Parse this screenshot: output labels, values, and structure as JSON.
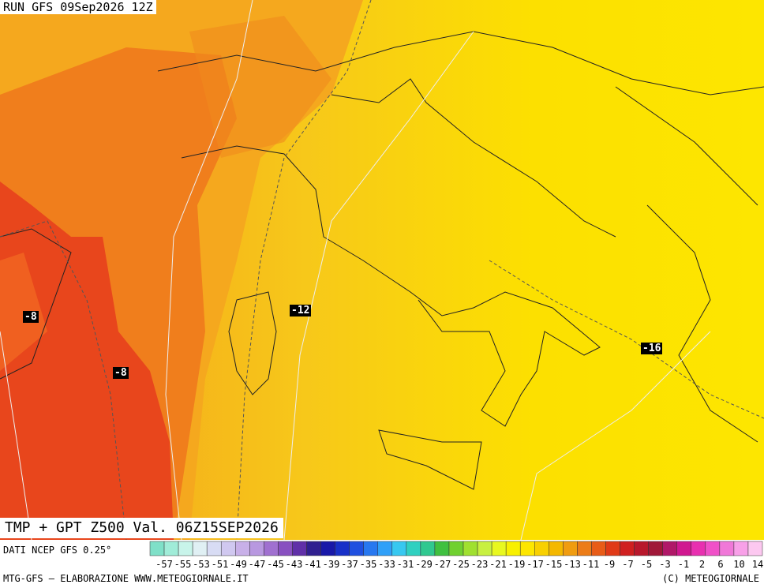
{
  "header": {
    "run": "RUN GFS 09Sep2026 12Z"
  },
  "map": {
    "contour_labels": [
      "-8",
      "-8",
      "-12",
      "-16"
    ]
  },
  "footer": {
    "title": "TMP + GPT Z500 Val. 06Z15SEP2026",
    "source": "DATI NCEP GFS 0.25°",
    "credit": "MTG-GFS – ELABORAZIONE WWW.METEOGIORNALE.IT",
    "copyright": "(C) METEOGIORNALE"
  },
  "legend": {
    "labels": [
      "-57",
      "-55",
      "-53",
      "-51",
      "-49",
      "-47",
      "-45",
      "-43",
      "-41",
      "-39",
      "-37",
      "-35",
      "-33",
      "-31",
      "-29",
      "-27",
      "-25",
      "-23",
      "-21",
      "-19",
      "-17",
      "-15",
      "-13",
      "-11",
      "-9",
      "-7",
      "-5",
      "-3",
      "-1",
      "2",
      "6",
      "10",
      "14"
    ]
  }
}
